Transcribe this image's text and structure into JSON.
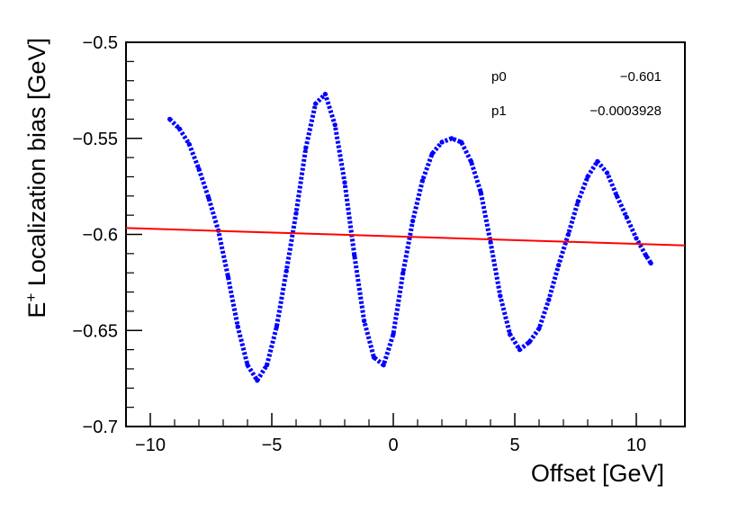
{
  "chart_data": {
    "type": "scatter",
    "title": "",
    "xlabel": "Offset [GeV]",
    "ylabel_main": "E",
    "ylabel_superscript": "+",
    "ylabel_rest": " Localization bias [GeV]",
    "xlim": [
      -11,
      12
    ],
    "ylim": [
      -0.7,
      -0.5
    ],
    "x_ticks": [
      -10,
      -5,
      0,
      5,
      10
    ],
    "x_tick_labels": [
      "−10",
      "−5",
      "0",
      "5",
      "10"
    ],
    "y_ticks": [
      -0.7,
      -0.65,
      -0.6,
      -0.55,
      -0.5
    ],
    "y_tick_labels": [
      "−0.7",
      "−0.65",
      "−0.6",
      "−0.55",
      "−0.5"
    ],
    "grid": false,
    "series": [
      {
        "type": "scatter",
        "color": "#0000ff",
        "x": [
          -9.2,
          -8.8,
          -8.4,
          -8.0,
          -7.6,
          -7.2,
          -6.8,
          -6.4,
          -6.0,
          -5.6,
          -5.2,
          -4.8,
          -4.4,
          -4.0,
          -3.6,
          -3.2,
          -2.8,
          -2.4,
          -2.0,
          -1.6,
          -1.2,
          -0.8,
          -0.4,
          0.0,
          0.4,
          0.8,
          1.2,
          1.6,
          2.0,
          2.4,
          2.8,
          3.2,
          3.6,
          4.0,
          4.4,
          4.8,
          5.2,
          5.6,
          6.0,
          6.4,
          6.8,
          7.2,
          7.6,
          8.0,
          8.4,
          8.8,
          9.2,
          9.6,
          10.0,
          10.4,
          10.6
        ],
        "y": [
          -0.54,
          -0.545,
          -0.553,
          -0.566,
          -0.581,
          -0.598,
          -0.622,
          -0.648,
          -0.668,
          -0.676,
          -0.668,
          -0.648,
          -0.619,
          -0.589,
          -0.555,
          -0.532,
          -0.527,
          -0.543,
          -0.573,
          -0.611,
          -0.645,
          -0.664,
          -0.668,
          -0.652,
          -0.62,
          -0.593,
          -0.572,
          -0.558,
          -0.552,
          -0.55,
          -0.552,
          -0.562,
          -0.578,
          -0.604,
          -0.632,
          -0.652,
          -0.66,
          -0.656,
          -0.649,
          -0.634,
          -0.616,
          -0.6,
          -0.583,
          -0.57,
          -0.562,
          -0.568,
          -0.58,
          -0.591,
          -0.602,
          -0.611,
          -0.615
        ]
      }
    ],
    "fit": {
      "color": "#ff0000",
      "p0": -0.601,
      "p1": -0.0003928
    },
    "stats": [
      {
        "name": "p0",
        "value": "−0.601"
      },
      {
        "name": "p1",
        "value": "−0.0003928"
      }
    ]
  }
}
